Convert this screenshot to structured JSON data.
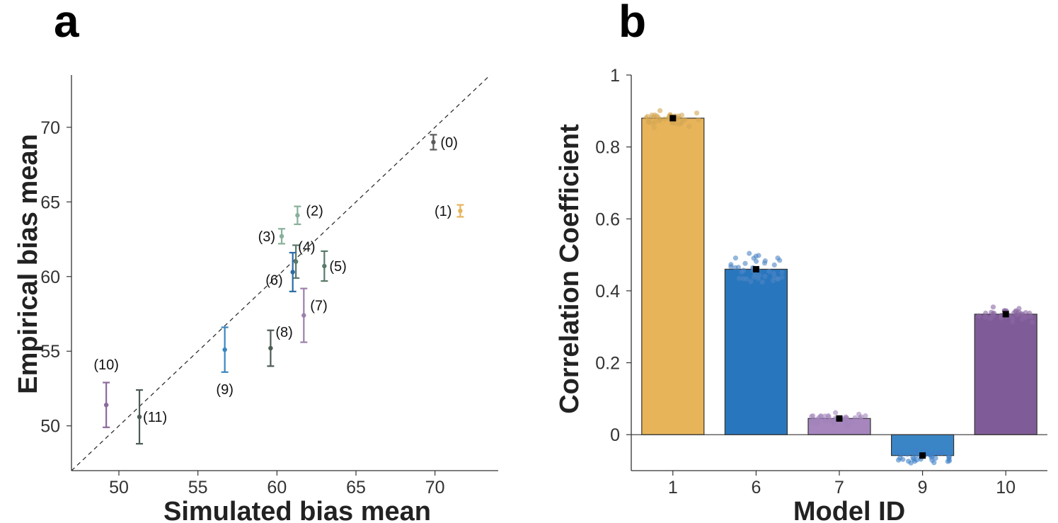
{
  "chart_data": [
    {
      "panel": "a",
      "type": "scatter",
      "xlabel": "Simulated bias mean",
      "ylabel": "Empirical bias mean",
      "xlim": [
        47,
        74
      ],
      "ylim": [
        47,
        73.5
      ],
      "xticks": [
        "50",
        "55",
        "60",
        "65",
        "70"
      ],
      "yticks": [
        "50",
        "55",
        "60",
        "65",
        "70"
      ],
      "reference_line": "y = x (dashed)",
      "points": [
        {
          "label": "(0)",
          "x": 69.9,
          "y": 69.0,
          "err": 0.5,
          "color": "#5a5a5a"
        },
        {
          "label": "(1)",
          "x": 71.6,
          "y": 64.4,
          "err": 0.4,
          "color": "#e8b45a"
        },
        {
          "label": "(2)",
          "x": 61.3,
          "y": 64.1,
          "err": 0.6,
          "color": "#88b09a"
        },
        {
          "label": "(3)",
          "x": 60.3,
          "y": 62.7,
          "err": 0.5,
          "color": "#88b09a"
        },
        {
          "label": "(4)",
          "x": 61.2,
          "y": 61.0,
          "err": 1.1,
          "color": "#5a7a6a"
        },
        {
          "label": "(5)",
          "x": 63.0,
          "y": 60.7,
          "err": 1.0,
          "color": "#5a7a6a"
        },
        {
          "label": "(6)",
          "x": 61.0,
          "y": 60.3,
          "err": 1.3,
          "color": "#2a6ca6"
        },
        {
          "label": "(7)",
          "x": 61.7,
          "y": 57.4,
          "err": 1.8,
          "color": "#9b80ad"
        },
        {
          "label": "(8)",
          "x": 59.6,
          "y": 55.2,
          "err": 1.2,
          "color": "#4c5c54"
        },
        {
          "label": "(9)",
          "x": 56.7,
          "y": 55.1,
          "err": 1.5,
          "color": "#3a85c0"
        },
        {
          "label": "(10)",
          "x": 49.2,
          "y": 51.4,
          "err": 1.5,
          "color": "#8b6a9c"
        },
        {
          "label": "(11)",
          "x": 51.3,
          "y": 50.6,
          "err": 1.8,
          "color": "#4c5c54"
        }
      ]
    },
    {
      "panel": "b",
      "type": "bar",
      "xlabel": "Model ID",
      "ylabel": "Correlation Coefficient",
      "categories": [
        "1",
        "6",
        "7",
        "9",
        "10"
      ],
      "values": [
        0.88,
        0.46,
        0.045,
        -0.058,
        0.335
      ],
      "spread": [
        0.012,
        0.025,
        0.01,
        0.012,
        0.012
      ],
      "colors": [
        "#e8b45a",
        "#2876be",
        "#a686bd",
        "#3a85c5",
        "#7f5c98"
      ],
      "dot_colors": [
        "#d4a653",
        "#4d86c4",
        "#a284bb",
        "#3d80c8",
        "#8a68a2"
      ],
      "ylim": [
        -0.1,
        1.0
      ],
      "yticks": [
        "0",
        "0.2",
        "0.4",
        "0.6",
        "0.8",
        "1"
      ]
    }
  ],
  "panels": {
    "a_letter": "a",
    "b_letter": "b"
  }
}
